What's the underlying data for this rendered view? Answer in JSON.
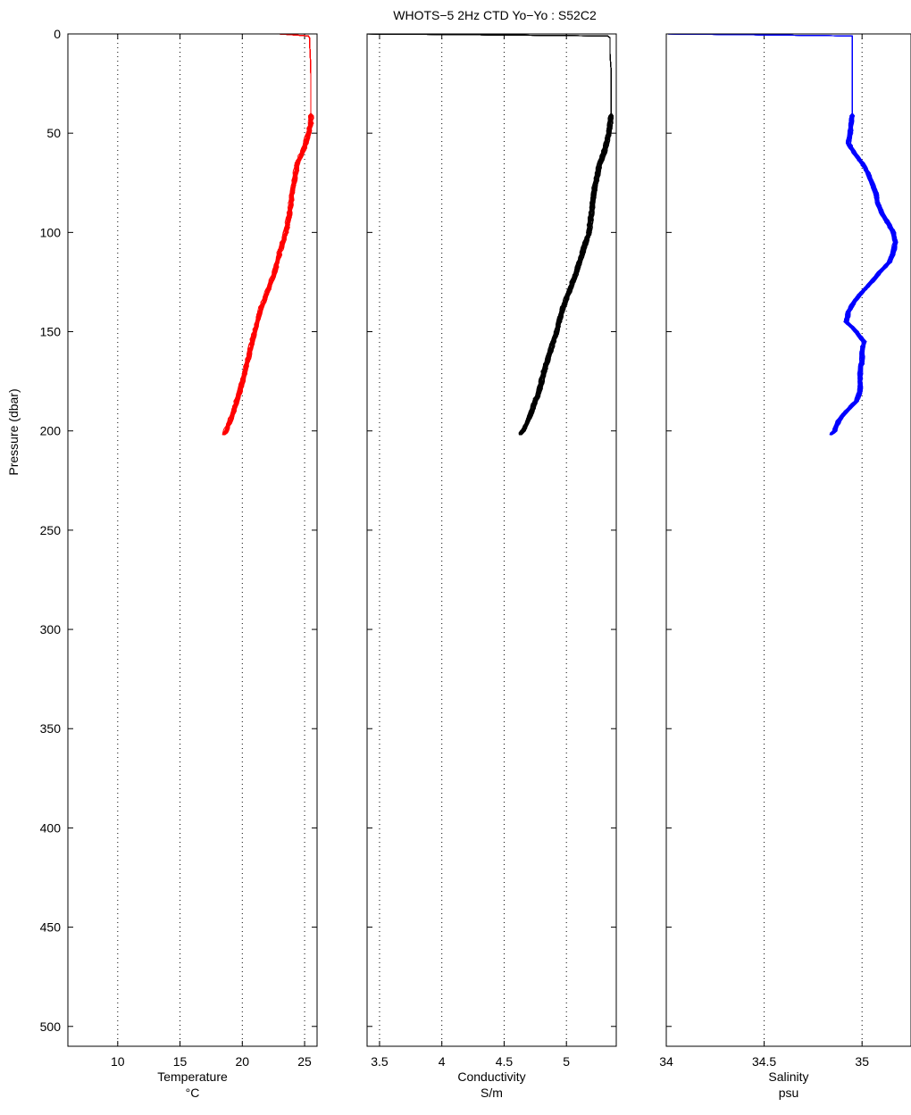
{
  "title": "WHOTS−5 2Hz CTD  Yo−Yo   : S52C2",
  "ylabel": "Pressure (dbar)",
  "ylim": [
    0,
    510
  ],
  "yticks": [
    0,
    50,
    100,
    150,
    200,
    250,
    300,
    350,
    400,
    450,
    500
  ],
  "chart_data": [
    {
      "type": "line",
      "name": "temperature",
      "xlabel": "Temperature",
      "xunit": "°C",
      "xlim": [
        6,
        26
      ],
      "xticks": [
        10,
        15,
        20,
        25
      ],
      "grid": "x-dotted",
      "color": "#ff0000",
      "profiles": 20,
      "y": [
        0,
        1,
        2,
        5,
        10,
        20,
        30,
        40,
        45,
        50,
        55,
        60,
        65,
        70,
        80,
        90,
        100,
        110,
        120,
        130,
        140,
        150,
        160,
        170,
        180,
        190,
        195,
        200,
        202
      ],
      "x": [
        23.0,
        25.3,
        25.4,
        25.4,
        25.45,
        25.5,
        25.5,
        25.5,
        25.5,
        25.3,
        25.1,
        24.8,
        24.4,
        24.3,
        24.0,
        23.8,
        23.5,
        23.0,
        22.6,
        22.0,
        21.4,
        21.0,
        20.6,
        20.2,
        19.8,
        19.3,
        19.0,
        18.7,
        18.5
      ]
    },
    {
      "type": "line",
      "name": "conductivity",
      "xlabel": "Conductivity",
      "xunit": "S/m",
      "xlim": [
        3.4,
        5.4
      ],
      "xticks": [
        3.5,
        4,
        4.5,
        5
      ],
      "grid": "x-dotted",
      "color": "#000000",
      "profiles": 20,
      "y": [
        0,
        1,
        2,
        5,
        10,
        20,
        30,
        40,
        45,
        50,
        55,
        60,
        65,
        70,
        80,
        90,
        100,
        110,
        120,
        130,
        140,
        150,
        160,
        170,
        180,
        190,
        195,
        200,
        202
      ],
      "x": [
        3.4,
        5.33,
        5.35,
        5.35,
        5.35,
        5.36,
        5.36,
        5.36,
        5.35,
        5.34,
        5.32,
        5.3,
        5.27,
        5.25,
        5.22,
        5.2,
        5.18,
        5.13,
        5.08,
        5.02,
        4.96,
        4.92,
        4.87,
        4.82,
        4.78,
        4.72,
        4.69,
        4.65,
        4.63
      ]
    },
    {
      "type": "line",
      "name": "salinity",
      "xlabel": "Salinity",
      "xunit": "psu",
      "xlim": [
        34,
        35.25
      ],
      "xticks": [
        34,
        34.5,
        35
      ],
      "grid": "x-dotted",
      "color": "#0000ff",
      "profiles": 20,
      "y": [
        0,
        1,
        2,
        5,
        10,
        20,
        30,
        40,
        50,
        55,
        60,
        65,
        70,
        75,
        80,
        85,
        90,
        95,
        100,
        105,
        110,
        115,
        120,
        125,
        130,
        135,
        140,
        145,
        150,
        155,
        160,
        165,
        170,
        175,
        180,
        185,
        190,
        195,
        200,
        202
      ],
      "x": [
        34.0,
        34.95,
        34.95,
        34.95,
        34.95,
        34.95,
        34.95,
        34.95,
        34.94,
        34.93,
        34.96,
        35.0,
        35.03,
        35.05,
        35.07,
        35.08,
        35.1,
        35.13,
        35.16,
        35.17,
        35.16,
        35.14,
        35.09,
        35.05,
        35.0,
        34.96,
        34.93,
        34.92,
        34.97,
        35.01,
        35.0,
        35.0,
        34.99,
        34.99,
        34.99,
        34.97,
        34.92,
        34.88,
        34.86,
        34.84
      ]
    }
  ]
}
